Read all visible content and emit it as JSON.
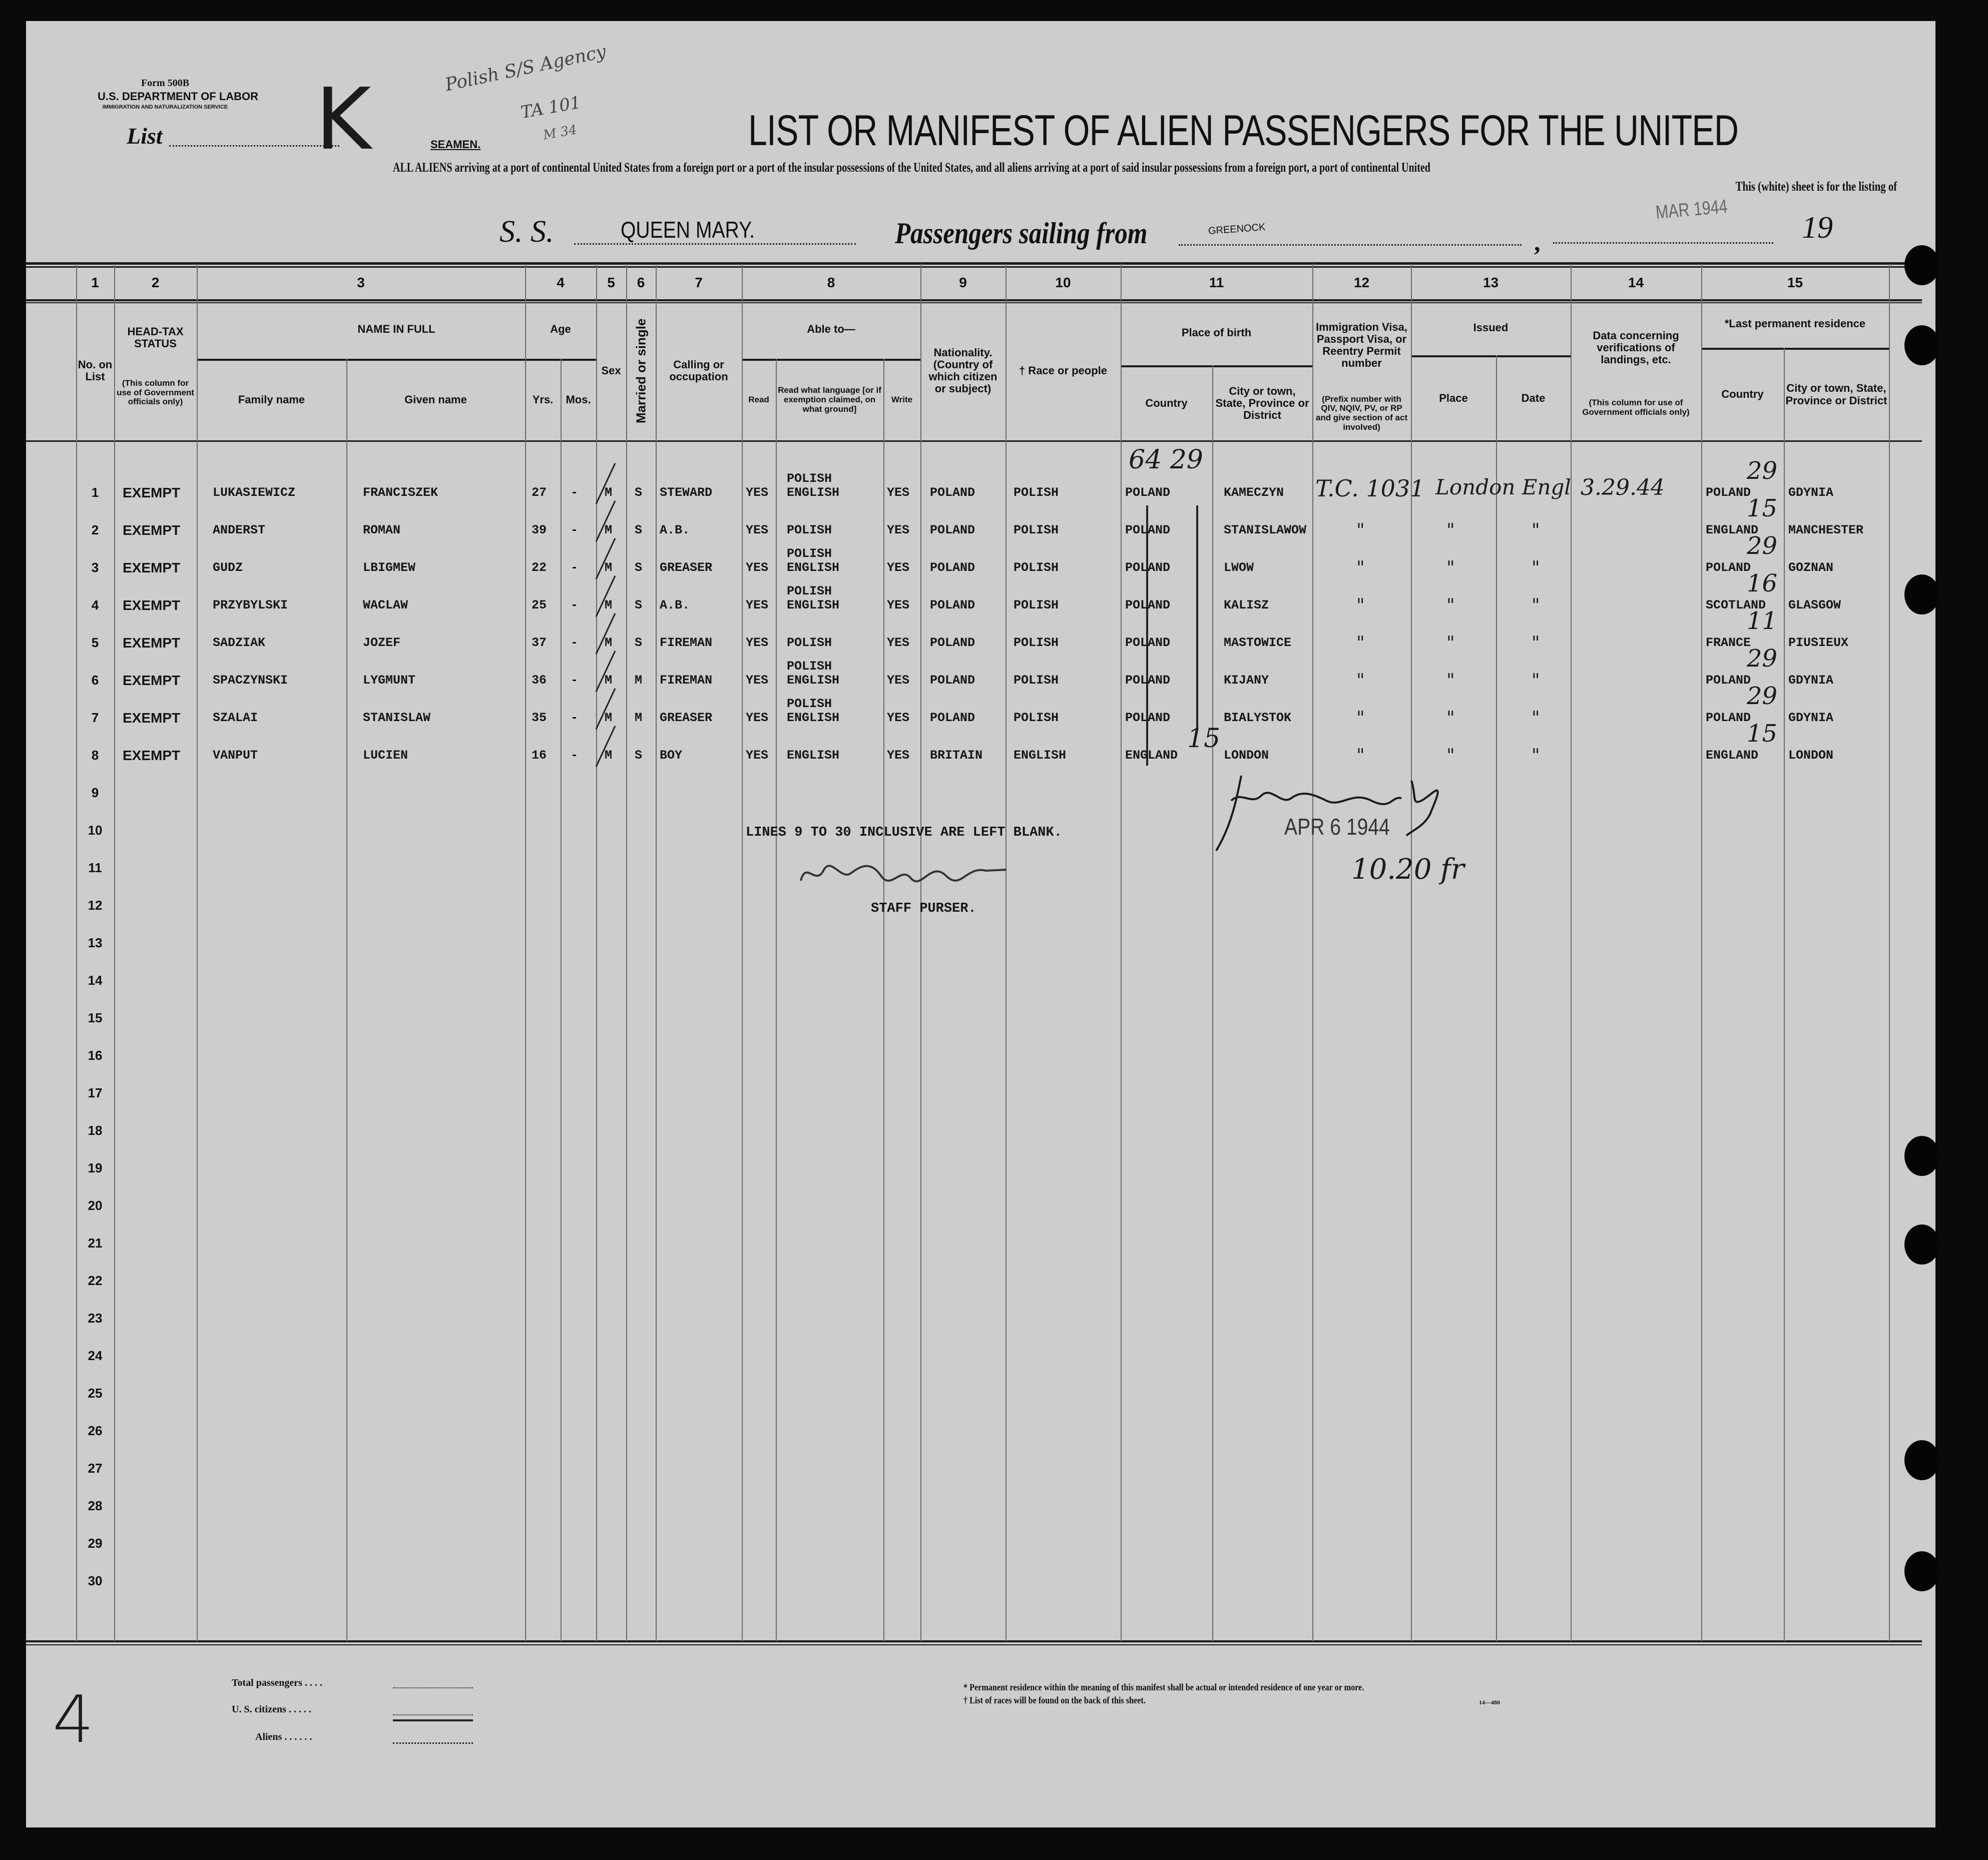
{
  "form": {
    "form_number": "Form 500B",
    "department": "U.S. DEPARTMENT OF LABOR",
    "service": "IMMIGRATION AND NATURALIZATION SERVICE",
    "list_label": "List",
    "list_value": "K",
    "seamen_label": "SEAMEN.",
    "title": "LIST OR MANIFEST OF ALIEN PASSENGERS FOR THE UNITED",
    "instructions_line1": "ALL ALIENS arriving at a port of continental United States from a foreign port or a port of the insular possessions of the United States, and all aliens arriving at a port of said insular possessions from a foreign port, a port of continental United",
    "instructions_line2": "This (white) sheet is for the listing of",
    "ss_label": "S. S.",
    "ship_name": "QUEEN MARY.",
    "sailing_label": "Passengers sailing from",
    "port": "GREENOCK",
    "date_stamp": "MAR 1944",
    "year_prefix": "19"
  },
  "annotations": {
    "agency": "Polish S/S Agency",
    "code1": "TA 101",
    "code2": "M 34",
    "lines_blank": "LINES 9 TO 30 INCLUSIVE ARE LEFT BLANK.",
    "staff_purser": "STAFF PURSER.",
    "arrival_stamp": "APR 6 1944",
    "inspector_note": "10.20 fr",
    "sheet_number": "4"
  },
  "column_numbers": [
    "1",
    "2",
    "3",
    "4",
    "5",
    "6",
    "7",
    "8",
    "9",
    "10",
    "11",
    "12",
    "13",
    "14",
    "15"
  ],
  "headers": [
    "No. on List",
    "HEAD-TAX STATUS",
    "(This column for use of Government officials only)",
    "NAME IN FULL",
    "Family name",
    "Given name",
    "Age",
    "Yrs.",
    "Mos.",
    "Sex",
    "Married or single",
    "Calling or occupation",
    "Able to—",
    "Read",
    "Read what language [or if exemption claimed, on what ground]",
    "Write",
    "Nationality. (Country of which citizen or subject)",
    "† Race or people",
    "Place of birth",
    "Country",
    "City or town, State, Province or District",
    "Immigration Visa, Passport Visa, or Reentry Permit number",
    "(Prefix number with QIV, NQIV, PV, or RP and give section of act involved)",
    "Issued",
    "Place",
    "Date",
    "Data concerning verifications of landings, etc.",
    "(This column for use of Government officials only)",
    "*Last permanent residence",
    "Country",
    "City or town, State, Province or District"
  ],
  "rows": [
    {
      "no": "1",
      "head_tax": "EXEMPT",
      "family": "LUKASIEWICZ",
      "given": "FRANCISZEK",
      "yrs": "27",
      "mos": "-",
      "sex": "M",
      "marital": "S",
      "occupation": "STEWARD",
      "read": "YES",
      "language": "POLISH\nENGLISH",
      "write": "YES",
      "nationality": "POLAND",
      "race": "POLISH",
      "birth_country": "POLAND",
      "birth_city": "KAMECZYN",
      "visa": "T.C. 1031",
      "issued_place": "London Engl",
      "issued_date": "3.29.44",
      "res_country": "POLAND",
      "res_city": "GDYNIA",
      "birth_note": "64 29",
      "res_note": "29"
    },
    {
      "no": "2",
      "head_tax": "EXEMPT",
      "family": "ANDERST",
      "given": "ROMAN",
      "yrs": "39",
      "mos": "-",
      "sex": "M",
      "marital": "S",
      "occupation": "A.B.",
      "read": "YES",
      "language": "POLISH",
      "write": "YES",
      "nationality": "POLAND",
      "race": "POLISH",
      "birth_country": "POLAND",
      "birth_city": "STANISLAWOW",
      "visa": "\"",
      "issued_place": "\"",
      "issued_date": "\"",
      "res_country": "ENGLAND",
      "res_city": "MANCHESTER",
      "birth_note": "",
      "res_note": "15"
    },
    {
      "no": "3",
      "head_tax": "EXEMPT",
      "family": "GUDZ",
      "given": "LBIGMEW",
      "yrs": "22",
      "mos": "-",
      "sex": "M",
      "marital": "S",
      "occupation": "GREASER",
      "read": "YES",
      "language": "POLISH\nENGLISH",
      "write": "YES",
      "nationality": "POLAND",
      "race": "POLISH",
      "birth_country": "POLAND",
      "birth_city": "LWOW",
      "visa": "\"",
      "issued_place": "\"",
      "issued_date": "\"",
      "res_country": "POLAND",
      "res_city": "GOZNAN",
      "birth_note": "",
      "res_note": "29"
    },
    {
      "no": "4",
      "head_tax": "EXEMPT",
      "family": "PRZYBYLSKI",
      "given": "WACLAW",
      "yrs": "25",
      "mos": "-",
      "sex": "M",
      "marital": "S",
      "occupation": "A.B.",
      "read": "YES",
      "language": "POLISH\nENGLISH",
      "write": "YES",
      "nationality": "POLAND",
      "race": "POLISH",
      "birth_country": "POLAND",
      "birth_city": "KALISZ",
      "visa": "\"",
      "issued_place": "\"",
      "issued_date": "\"",
      "res_country": "SCOTLAND",
      "res_city": "GLASGOW",
      "birth_note": "",
      "res_note": "16"
    },
    {
      "no": "5",
      "head_tax": "EXEMPT",
      "family": "SADZIAK",
      "given": "JOZEF",
      "yrs": "37",
      "mos": "-",
      "sex": "M",
      "marital": "S",
      "occupation": "FIREMAN",
      "read": "YES",
      "language": "POLISH",
      "write": "YES",
      "nationality": "POLAND",
      "race": "POLISH",
      "birth_country": "POLAND",
      "birth_city": "MASTOWICE",
      "visa": "\"",
      "issued_place": "\"",
      "issued_date": "\"",
      "res_country": "FRANCE",
      "res_city": "PIUSIEUX",
      "birth_note": "",
      "res_note": "11"
    },
    {
      "no": "6",
      "head_tax": "EXEMPT",
      "family": "SPACZYNSKI",
      "given": "LYGMUNT",
      "yrs": "36",
      "mos": "-",
      "sex": "M",
      "marital": "M",
      "occupation": "FIREMAN",
      "read": "YES",
      "language": "POLISH\nENGLISH",
      "write": "YES",
      "nationality": "POLAND",
      "race": "POLISH",
      "birth_country": "POLAND",
      "birth_city": "KIJANY",
      "visa": "\"",
      "issued_place": "\"",
      "issued_date": "\"",
      "res_country": "POLAND",
      "res_city": "GDYNIA",
      "birth_note": "",
      "res_note": "29"
    },
    {
      "no": "7",
      "head_tax": "EXEMPT",
      "family": "SZALAI",
      "given": "STANISLAW",
      "yrs": "35",
      "mos": "-",
      "sex": "M",
      "marital": "M",
      "occupation": "GREASER",
      "read": "YES",
      "language": "POLISH\nENGLISH",
      "write": "YES",
      "nationality": "POLAND",
      "race": "POLISH",
      "birth_country": "POLAND",
      "birth_city": "BIALYSTOK",
      "visa": "\"",
      "issued_place": "\"",
      "issued_date": "\"",
      "res_country": "POLAND",
      "res_city": "GDYNIA",
      "birth_note": "",
      "res_note": "29"
    },
    {
      "no": "8",
      "head_tax": "EXEMPT",
      "family": "VANPUT",
      "given": "LUCIEN",
      "yrs": "16",
      "mos": "-",
      "sex": "M",
      "marital": "S",
      "occupation": "BOY",
      "read": "YES",
      "language": "ENGLISH",
      "write": "YES",
      "nationality": "BRITAIN",
      "race": "ENGLISH",
      "birth_country": "ENGLAND",
      "birth_city": "LONDON",
      "visa": "\"",
      "issued_place": "\"",
      "issued_date": "\"",
      "res_country": "ENGLAND",
      "res_city": "LONDON",
      "birth_note": "15",
      "res_note": "15"
    }
  ],
  "blank_row_numbers": [
    "9",
    "10",
    "11",
    "12",
    "13",
    "14",
    "15",
    "16",
    "17",
    "18",
    "19",
    "20",
    "21",
    "22",
    "23",
    "24",
    "25",
    "26",
    "27",
    "28",
    "29",
    "30"
  ],
  "footer": {
    "total_passengers": "Total passengers . . . .",
    "us_citizens": "U. S. citizens . . . . .",
    "aliens": "Aliens . . . . . .",
    "footnote1": "* Permanent residence within the meaning of this manifest shall be actual or intended residence of one year or more.",
    "footnote2": "† List of races will be found on the back of this sheet.",
    "print_code": "14—480"
  }
}
